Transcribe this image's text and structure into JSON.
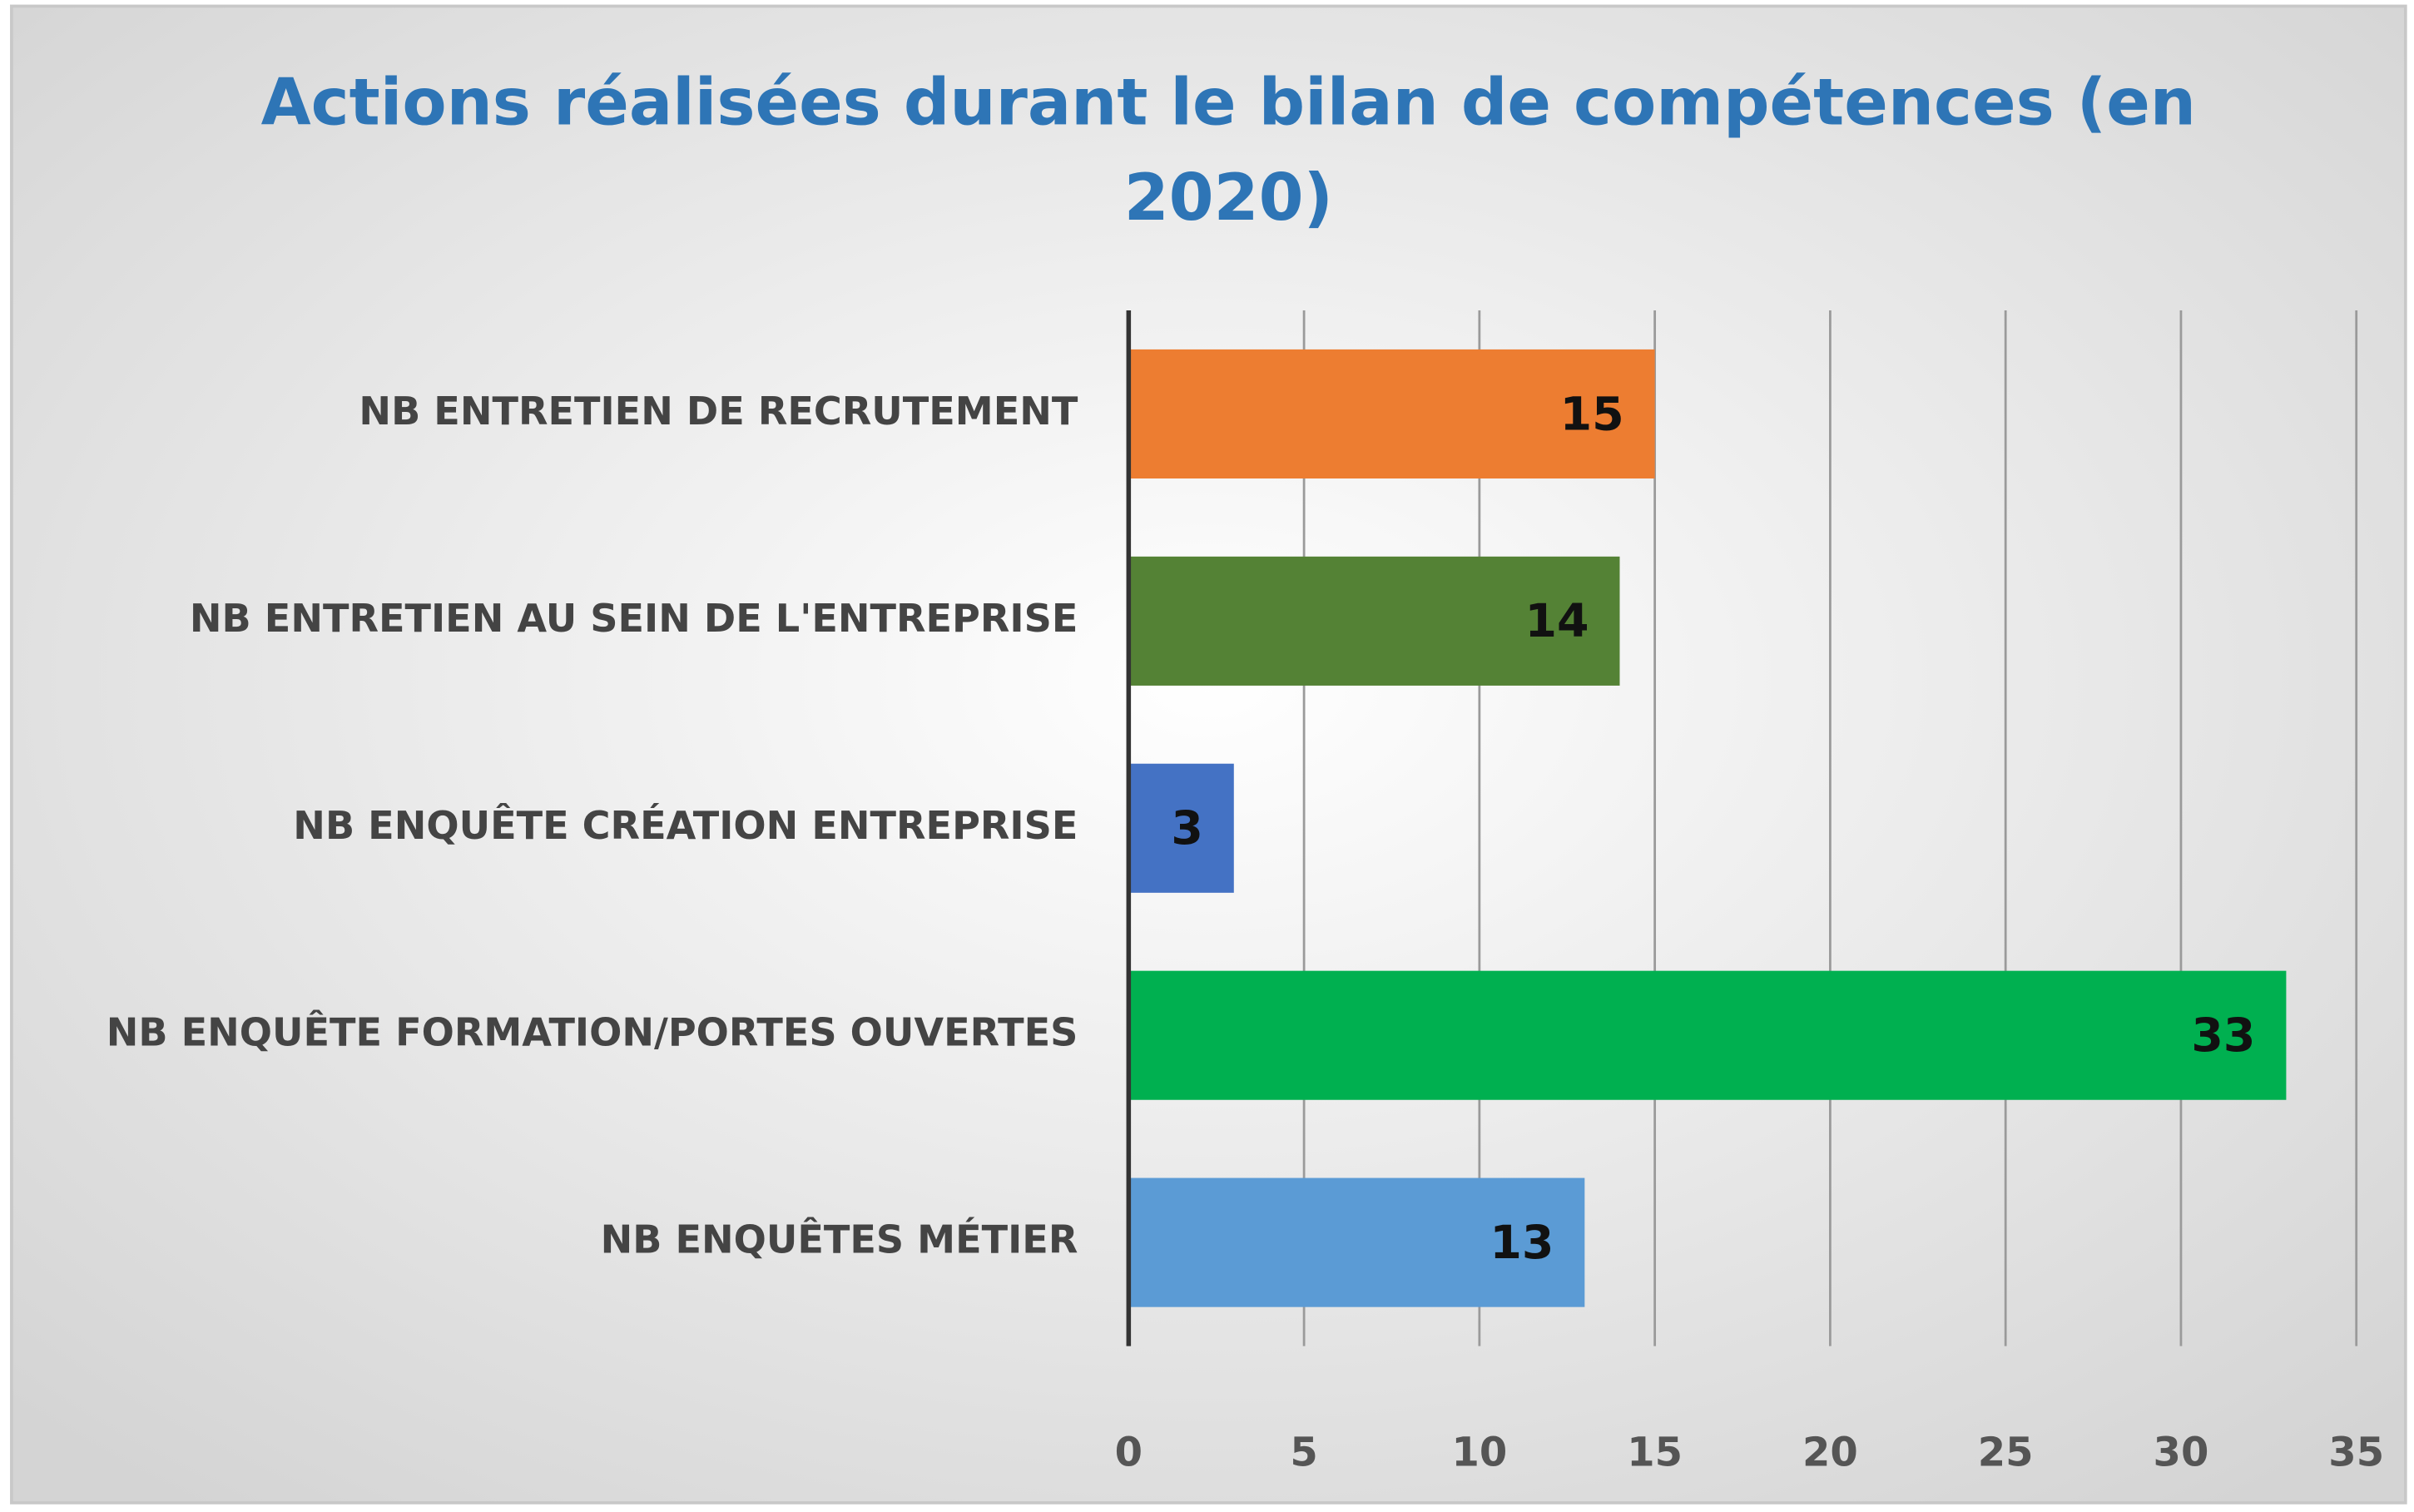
{
  "chart_data": {
    "type": "bar",
    "orientation": "horizontal",
    "title": "Actions réalisées durant le bilan de compétences (en 2020)",
    "categories": [
      "NB ENTRETIEN DE RECRUTEMENT",
      "NB ENTRETIEN AU SEIN DE L'ENTREPRISE",
      "NB ENQUÊTE CRÉATION ENTREPRISE",
      "NB ENQUÊTE FORMATION/PORTES OUVERTES",
      "NB ENQUÊTES MÉTIER"
    ],
    "values": [
      15,
      14,
      3,
      33,
      13
    ],
    "colors": [
      "#ED7D31",
      "#548235",
      "#4472C4",
      "#00B050",
      "#5B9BD5"
    ],
    "xlim": [
      0,
      35
    ],
    "xticks": [
      0,
      5,
      10,
      15,
      20,
      25,
      30,
      35
    ],
    "grid": true
  }
}
